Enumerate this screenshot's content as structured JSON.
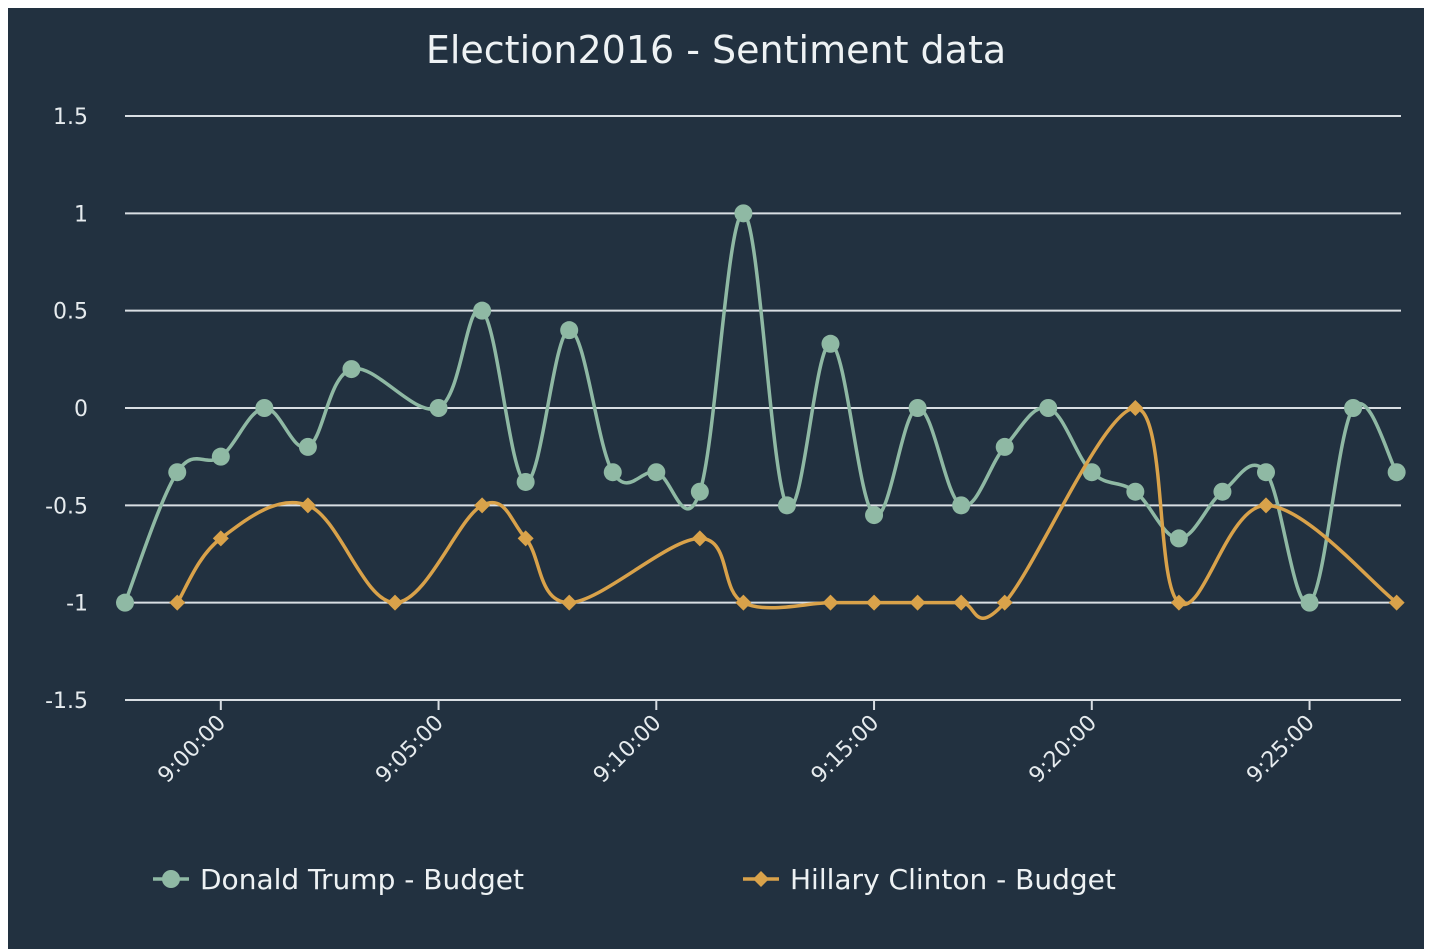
{
  "chart_data": {
    "type": "line",
    "title": "Election2016 - Sentiment data",
    "xlabel": "",
    "ylabel": "",
    "ylim": [
      -1.5,
      1.5
    ],
    "yticks": [
      "1.5",
      "1",
      "0.5",
      "0",
      "-0.5",
      "-1",
      "-1.5"
    ],
    "ytick_values": [
      1.5,
      1,
      0.5,
      0,
      -0.5,
      -1,
      -1.5
    ],
    "xlim": [
      "8:57:48",
      "9:27:06"
    ],
    "xticks": [
      "9:00:00",
      "9:05:00",
      "9:10:00",
      "9:15:00",
      "9:20:00",
      "9:25:00"
    ],
    "grid": true,
    "legend_position": "bottom",
    "series": [
      {
        "name": "Donald Trump - Budget",
        "color": "#8fb9a4",
        "marker": "circle",
        "x": [
          "8:57:48",
          "8:59:00",
          "9:00:00",
          "9:01:00",
          "9:02:00",
          "9:03:00",
          "9:05:00",
          "9:06:00",
          "9:07:00",
          "9:08:00",
          "9:09:00",
          "9:10:00",
          "9:11:00",
          "9:12:00",
          "9:13:00",
          "9:14:00",
          "9:15:00",
          "9:16:00",
          "9:17:00",
          "9:18:00",
          "9:19:00",
          "9:20:00",
          "9:21:00",
          "9:22:00",
          "9:23:00",
          "9:24:00",
          "9:25:00",
          "9:26:00",
          "9:27:00"
        ],
        "y": [
          -1,
          -0.33,
          -0.25,
          0,
          -0.2,
          0.2,
          0,
          0.5,
          -0.38,
          0.4,
          -0.33,
          -0.33,
          -0.43,
          1,
          -0.5,
          0.33,
          -0.55,
          0,
          -0.5,
          -0.2,
          0,
          -0.33,
          -0.43,
          -0.67,
          -0.43,
          -0.33,
          -1,
          0,
          -0.33
        ]
      },
      {
        "name": "Hillary Clinton - Budget",
        "color": "#d9a24a",
        "marker": "diamond",
        "x": [
          "8:59:00",
          "9:00:00",
          "9:02:00",
          "9:04:00",
          "9:06:00",
          "9:07:00",
          "9:08:00",
          "9:11:00",
          "9:12:00",
          "9:14:00",
          "9:15:00",
          "9:16:00",
          "9:17:00",
          "9:18:00",
          "9:21:00",
          "9:22:00",
          "9:24:00",
          "9:27:00"
        ],
        "y": [
          -1,
          -0.67,
          -0.5,
          -1,
          -0.5,
          -0.67,
          -1,
          -0.67,
          -1,
          -1,
          -1,
          -1,
          -1,
          -1,
          0,
          -1,
          -0.5,
          -1
        ]
      }
    ]
  }
}
